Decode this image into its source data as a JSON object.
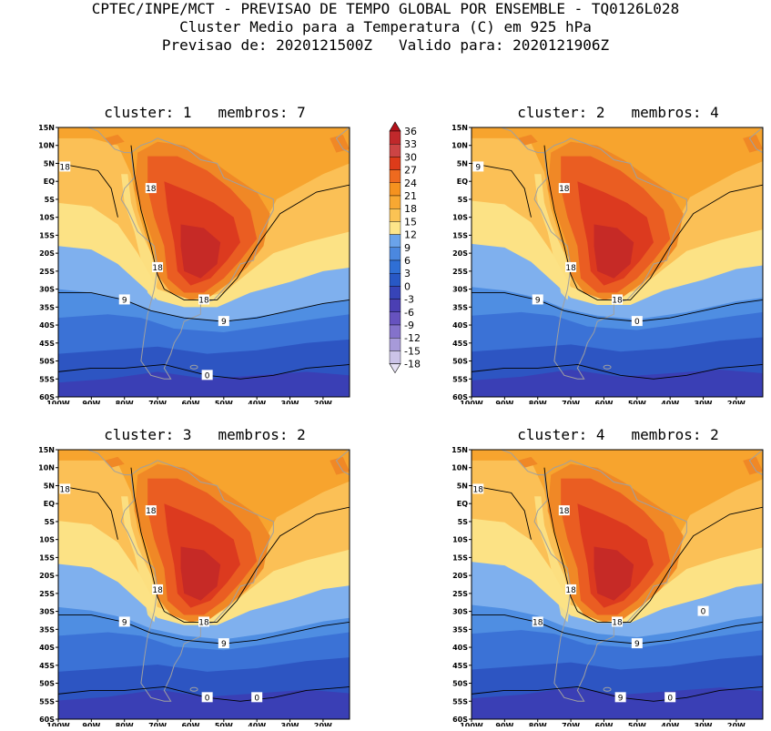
{
  "header": {
    "line1": "CPTEC/INPE/MCT - PREVISAO DE TEMPO GLOBAL POR ENSEMBLE - TQ0126L028",
    "line2": "Cluster Medio para a Temperatura (C) em 925 hPa",
    "line3": "Previsao de: 2020121500Z   Valido para: 2020121906Z"
  },
  "axes": {
    "lat_labels": [
      "15N",
      "10N",
      "5N",
      "EQ",
      "5S",
      "10S",
      "15S",
      "20S",
      "25S",
      "30S",
      "35S",
      "40S",
      "45S",
      "50S",
      "55S",
      "60S"
    ],
    "lon_labels": [
      "100W",
      "90W",
      "80W",
      "70W",
      "60W",
      "50W",
      "40W",
      "30W",
      "20W"
    ],
    "lat_range": [
      15,
      -60
    ],
    "lon_range": [
      -100,
      -12
    ]
  },
  "colorbar": {
    "levels": [
      "36",
      "33",
      "30",
      "27",
      "24",
      "21",
      "18",
      "15",
      "12",
      "9",
      "6",
      "3",
      "0",
      "-3",
      "-6",
      "-9",
      "-12",
      "-15",
      "-18"
    ],
    "colors": [
      "#b3121b",
      "#c0282b",
      "#cc4444",
      "#dd3b1a",
      "#ee6a1f",
      "#f5921f",
      "#f8a832",
      "#fbc354",
      "#fde58a",
      "#6aa3ea",
      "#4b88df",
      "#2f6fd5",
      "#2858c5",
      "#3744b8",
      "#4b3fb3",
      "#6652bf",
      "#8472cb",
      "#a79ad9",
      "#cbc3e8",
      "#e6e1f4"
    ]
  },
  "panels": [
    {
      "title": "cluster: 1   membros: 7",
      "contour_labels": [
        "18",
        "18",
        "18",
        "18",
        "9",
        "9",
        "0"
      ]
    },
    {
      "title": "cluster: 2   membros: 4",
      "contour_labels": [
        "18",
        "18",
        "18",
        "9",
        "9",
        "0"
      ]
    },
    {
      "title": "cluster: 3   membros: 2",
      "contour_labels": [
        "18",
        "18",
        "18",
        "18",
        "9",
        "9",
        "0",
        "0"
      ]
    },
    {
      "title": "cluster: 4   membros: 2",
      "contour_labels": [
        "18",
        "18",
        "18",
        "18",
        "18",
        "9",
        "9",
        "0",
        "0"
      ]
    }
  ]
}
